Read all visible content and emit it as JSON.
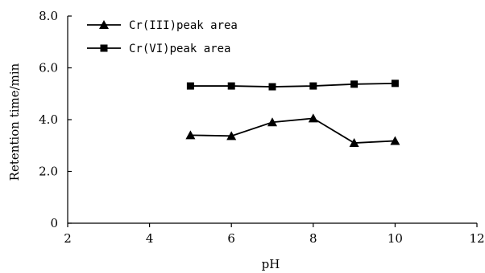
{
  "chart_data": {
    "type": "line",
    "title": "",
    "xlabel": "pH",
    "ylabel": "Retention time∕min",
    "xlim": [
      2,
      12
    ],
    "ylim": [
      0,
      8
    ],
    "x_ticks": [
      "2",
      "4",
      "6",
      "8",
      "10",
      "12"
    ],
    "y_ticks": [
      "0",
      "2.0",
      "4.0",
      "6.0",
      "8.0"
    ],
    "grid": false,
    "legend_position": "top-left",
    "x": [
      5,
      6,
      7,
      8,
      9,
      10
    ],
    "series": [
      {
        "name": "Cr(III)peak area",
        "marker": "triangle",
        "color": "#000000",
        "values": [
          3.4,
          3.37,
          3.9,
          4.05,
          3.1,
          3.18
        ]
      },
      {
        "name": "Cr(VI)peak area",
        "marker": "square",
        "color": "#000000",
        "values": [
          5.3,
          5.3,
          5.27,
          5.3,
          5.37,
          5.4
        ]
      }
    ]
  }
}
